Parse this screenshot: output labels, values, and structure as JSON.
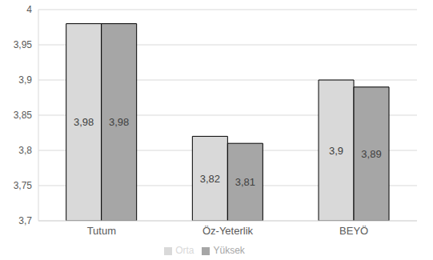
{
  "chart_data": {
    "type": "bar",
    "categories": [
      "Tutum",
      "Öz-Yeterlik",
      "BEYÖ"
    ],
    "series": [
      {
        "name": "Orta",
        "color": "#d9d9d9",
        "values": [
          3.98,
          3.82,
          3.9
        ],
        "value_labels": [
          "3,98",
          "3,82",
          "3,9"
        ]
      },
      {
        "name": "Yüksek",
        "color": "#a6a6a6",
        "values": [
          3.98,
          3.81,
          3.89
        ],
        "value_labels": [
          "3,98",
          "3,81",
          "3,89"
        ]
      }
    ],
    "ylim": [
      3.7,
      4
    ],
    "yticks": [
      {
        "value": 3.7,
        "label": "3,7"
      },
      {
        "value": 3.75,
        "label": "3,75"
      },
      {
        "value": 3.8,
        "label": "3,8"
      },
      {
        "value": 3.85,
        "label": "3,85"
      },
      {
        "value": 3.9,
        "label": "3,9"
      },
      {
        "value": 3.95,
        "label": "3,95"
      },
      4
    ],
    "grid": true,
    "legend": "bottom",
    "data_labels": true
  }
}
